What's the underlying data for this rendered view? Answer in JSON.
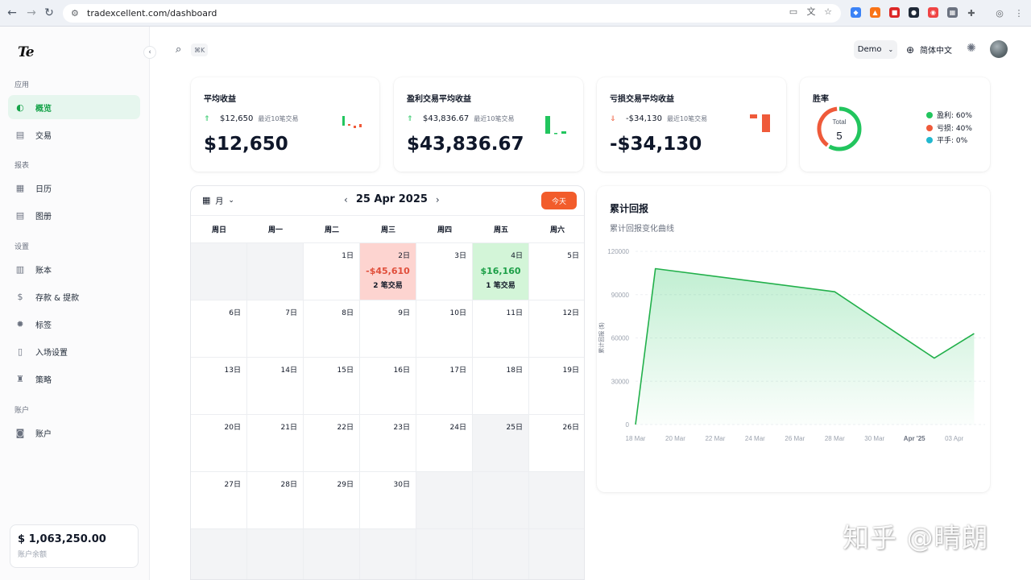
{
  "browser": {
    "url": "tradexcellent.com/dashboard"
  },
  "sidebar": {
    "logo": "Te",
    "sections": {
      "app": "应用",
      "reports": "报表",
      "settings": "设置",
      "account": "账户"
    },
    "items": [
      {
        "label": "概览",
        "icon": "overview-icon"
      },
      {
        "label": "交易",
        "icon": "trades-icon"
      },
      {
        "label": "日历",
        "icon": "calendar-icon"
      },
      {
        "label": "图册",
        "icon": "gallery-icon"
      },
      {
        "label": "账本",
        "icon": "ledger-icon"
      },
      {
        "label": "存款 & 提款",
        "icon": "dollar-icon"
      },
      {
        "label": "标签",
        "icon": "tag-icon"
      },
      {
        "label": "入场设置",
        "icon": "entry-icon"
      },
      {
        "label": "策略",
        "icon": "strategy-icon"
      },
      {
        "label": "账户",
        "icon": "account-icon"
      }
    ],
    "balance": {
      "amount": "$ 1,063,250.00",
      "label": "账户余额"
    }
  },
  "topbar": {
    "shortcut": "⌘K",
    "demo": "Demo",
    "language": "简体中文"
  },
  "stats": [
    {
      "title": "平均收益",
      "sub_value": "$12,650",
      "note": "最近10笔交易",
      "big": "$12,650",
      "trend": "up"
    },
    {
      "title": "盈利交易平均收益",
      "sub_value": "$43,836.67",
      "note": "最近10笔交易",
      "big": "$43,836.67",
      "trend": "up"
    },
    {
      "title": "亏损交易平均收益",
      "sub_value": "-$34,130",
      "note": "最近10笔交易",
      "big": "-$34,130",
      "trend": "down"
    }
  ],
  "winrate": {
    "title": "胜率",
    "center_label": "Total",
    "center_value": "5",
    "legend": [
      {
        "label": "盈利: 60%",
        "color": "#22c55e",
        "value": 60
      },
      {
        "label": "亏损: 40%",
        "color": "#ef5a3a",
        "value": 40
      },
      {
        "label": "平手: 0%",
        "color": "#22b8cf",
        "value": 0
      }
    ]
  },
  "calendar": {
    "view": "月",
    "month": "25 Apr 2025",
    "today": "今天",
    "weekdays": [
      "周日",
      "周一",
      "周二",
      "周三",
      "周四",
      "周五",
      "周六"
    ],
    "cells": [
      {
        "empty": true
      },
      {
        "empty": true
      },
      {
        "day": "1日"
      },
      {
        "day": "2日",
        "pnl": "-$45,610",
        "trades": "2 笔交易",
        "type": "loss"
      },
      {
        "day": "3日"
      },
      {
        "day": "4日",
        "pnl": "$16,160",
        "trades": "1 笔交易",
        "type": "gain"
      },
      {
        "day": "5日"
      },
      {
        "day": "6日"
      },
      {
        "day": "7日"
      },
      {
        "day": "8日"
      },
      {
        "day": "9日"
      },
      {
        "day": "10日"
      },
      {
        "day": "11日"
      },
      {
        "day": "12日"
      },
      {
        "day": "13日"
      },
      {
        "day": "14日"
      },
      {
        "day": "15日"
      },
      {
        "day": "16日"
      },
      {
        "day": "17日"
      },
      {
        "day": "18日"
      },
      {
        "day": "19日"
      },
      {
        "day": "20日"
      },
      {
        "day": "21日"
      },
      {
        "day": "22日"
      },
      {
        "day": "23日"
      },
      {
        "day": "24日"
      },
      {
        "day": "25日",
        "shade": true
      },
      {
        "day": "26日"
      },
      {
        "day": "27日"
      },
      {
        "day": "28日"
      },
      {
        "day": "29日"
      },
      {
        "day": "30日"
      },
      {
        "empty": true
      },
      {
        "empty": true
      },
      {
        "empty": true
      },
      {
        "empty": true
      },
      {
        "empty": true
      },
      {
        "empty": true
      },
      {
        "empty": true
      },
      {
        "empty": true
      },
      {
        "empty": true
      },
      {
        "empty": true
      }
    ]
  },
  "chart_title": "累计回报",
  "chart_subtitle": "累计回报变化曲线",
  "chart_data": {
    "type": "area",
    "xlabel": "",
    "ylabel": "累计回报 ($)",
    "ylim": [
      0,
      120000
    ],
    "yticks": [
      0,
      30000,
      60000,
      90000,
      120000
    ],
    "xticks": [
      "18 Mar",
      "20 Mar",
      "22 Mar",
      "24 Mar",
      "26 Mar",
      "28 Mar",
      "30 Mar",
      "Apr '25",
      "03 Apr"
    ],
    "x": [
      "18 Mar",
      "19 Mar",
      "28 Mar",
      "02 Apr",
      "04 Apr"
    ],
    "series": [
      {
        "values": [
          0,
          108000,
          92000,
          46000,
          63000
        ],
        "color": "#22b04b"
      }
    ],
    "grid": true
  },
  "watermark": "知乎 @晴朗"
}
